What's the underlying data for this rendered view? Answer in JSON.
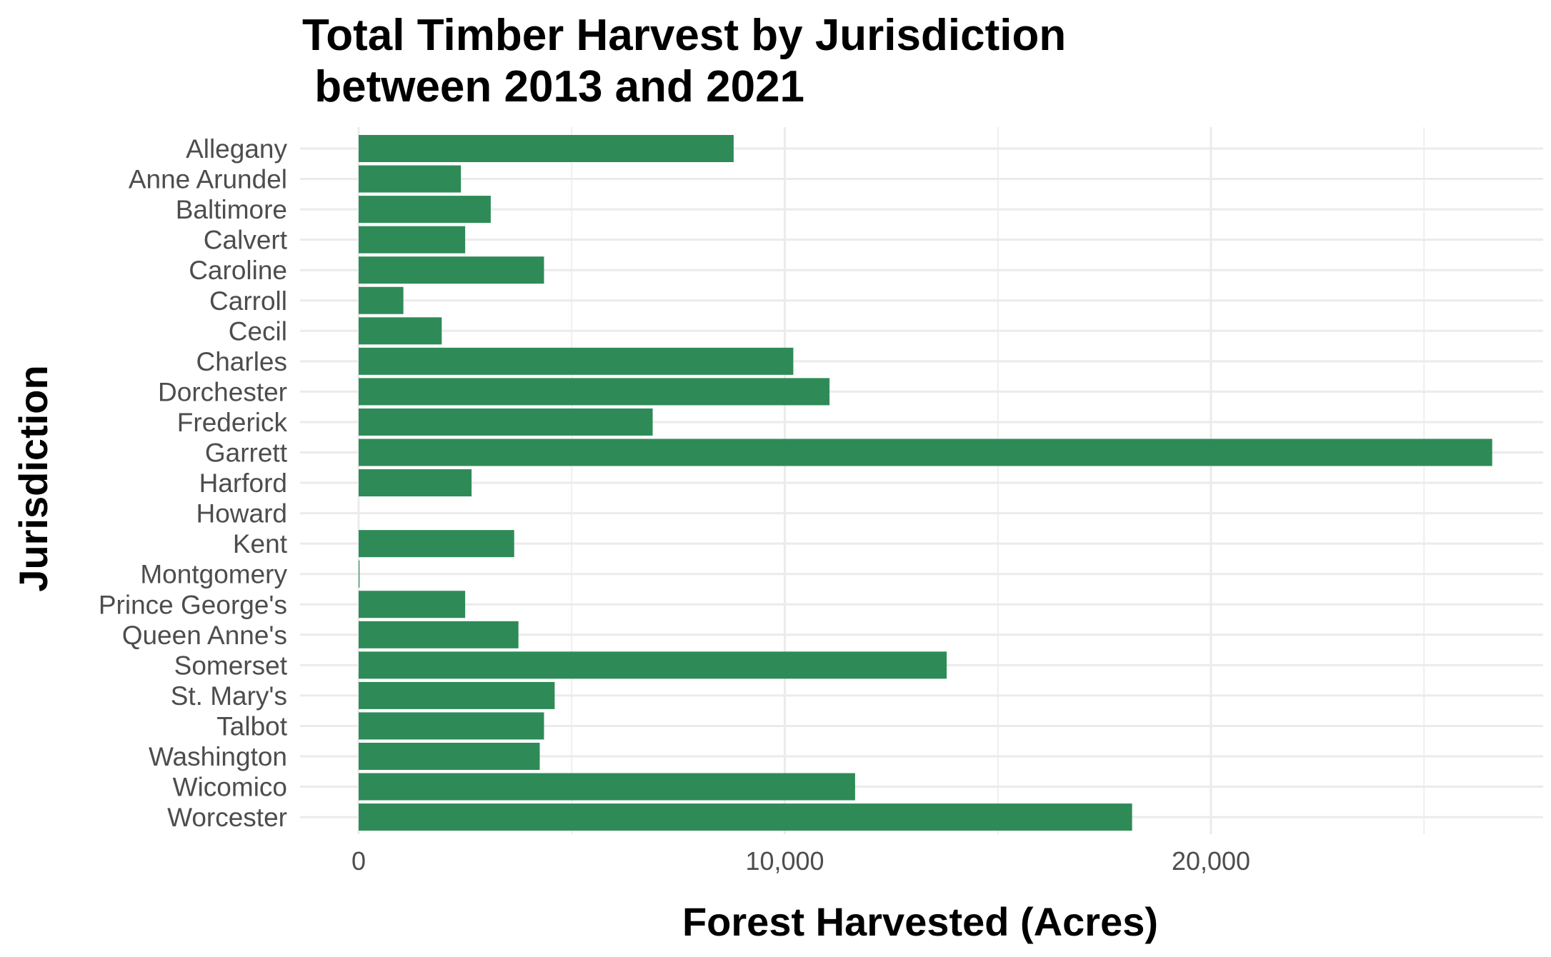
{
  "chart_data": {
    "type": "bar",
    "orientation": "horizontal",
    "title_lines": [
      "Total Timber Harvest by Jurisdiction",
      " between 2013 and 2021"
    ],
    "xlabel": "Forest Harvested (Acres)",
    "ylabel": "Jurisdiction",
    "xlim": [
      0,
      27000
    ],
    "x_ticks": [
      0,
      10000,
      20000
    ],
    "x_tick_labels": [
      "0",
      "10,000",
      "20,000"
    ],
    "grid": true,
    "legend": "none",
    "bar_color": "#2E8B57",
    "categories": [
      "Allegany",
      "Anne Arundel",
      "Baltimore",
      "Calvert",
      "Caroline",
      "Carroll",
      "Cecil",
      "Charles",
      "Dorchester",
      "Frederick",
      "Garrett",
      "Harford",
      "Howard",
      "Kent",
      "Montgomery",
      "Prince George's",
      "Queen Anne's",
      "Somerset",
      "St. Mary's",
      "Talbot",
      "Washington",
      "Wicomico",
      "Worcester"
    ],
    "values": [
      8800,
      2400,
      3100,
      2500,
      4350,
      1050,
      1950,
      10200,
      11050,
      6900,
      26600,
      2650,
      0,
      3650,
      20,
      2500,
      3750,
      13800,
      4600,
      4350,
      4250,
      11650,
      18150
    ]
  }
}
